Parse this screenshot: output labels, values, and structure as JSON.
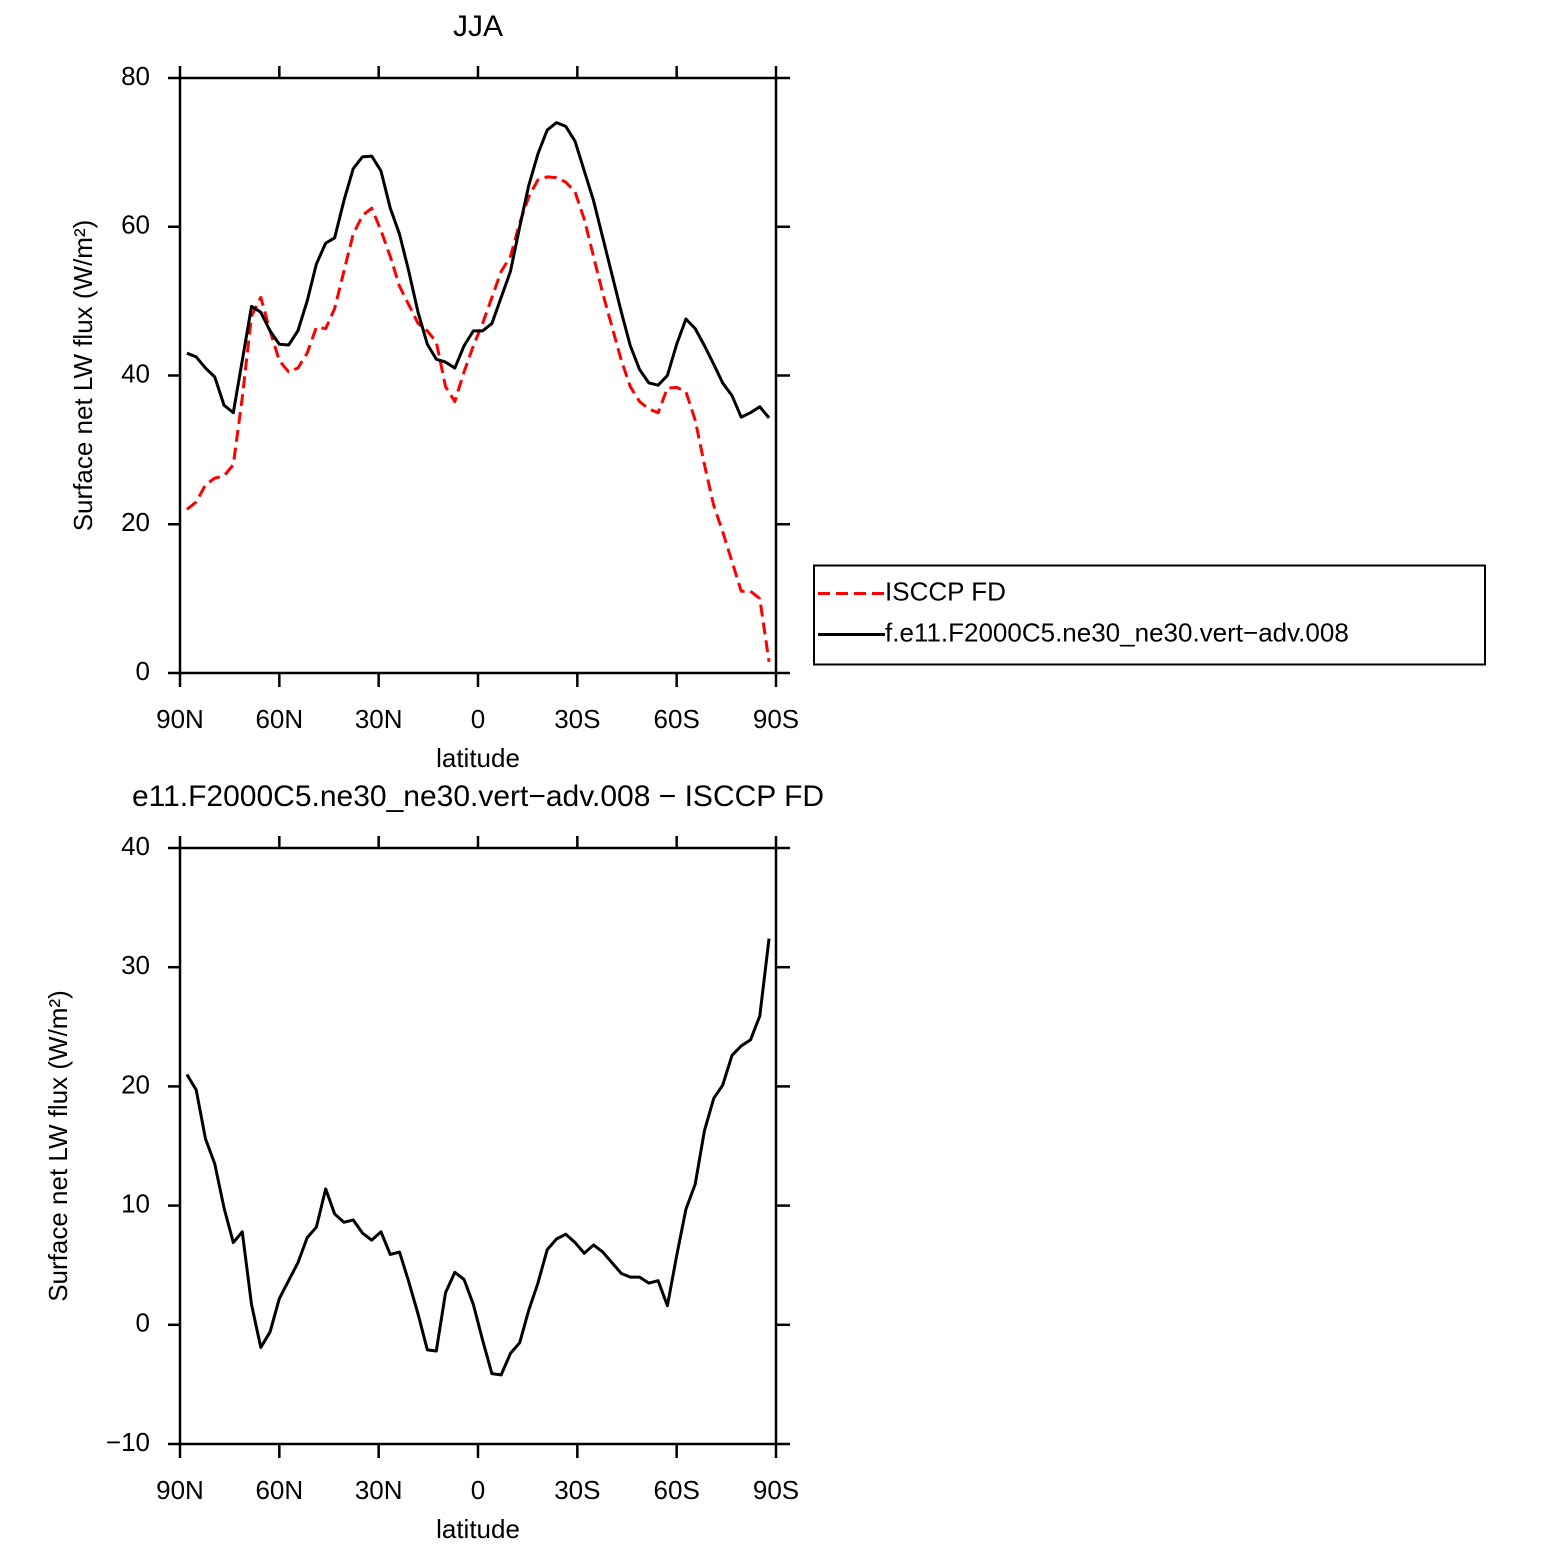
{
  "chart_data": [
    {
      "type": "line",
      "title": "JJA",
      "xlabel": "latitude",
      "ylabel": "Surface net LW flux (W/m²)",
      "x": [
        87.9,
        85.1,
        82.3,
        79.5,
        76.7,
        73.9,
        71.2,
        68.4,
        65.6,
        62.8,
        60.0,
        57.2,
        54.4,
        51.6,
        48.8,
        46.0,
        43.3,
        40.5,
        37.7,
        34.9,
        32.1,
        29.3,
        26.5,
        23.7,
        20.9,
        18.1,
        15.3,
        12.6,
        9.8,
        7.0,
        4.2,
        1.4,
        -1.4,
        -4.2,
        -7.0,
        -9.8,
        -12.6,
        -15.3,
        -18.1,
        -20.9,
        -23.7,
        -26.5,
        -29.3,
        -32.1,
        -34.9,
        -37.7,
        -40.5,
        -43.3,
        -46.0,
        -48.8,
        -51.6,
        -54.4,
        -57.2,
        -60.0,
        -62.8,
        -65.6,
        -68.4,
        -71.2,
        -73.9,
        -76.7,
        -79.5,
        -82.3,
        -85.1,
        -87.9
      ],
      "xlim": [
        90,
        -90
      ],
      "xticks": [
        {
          "value": 90,
          "label": "90N"
        },
        {
          "value": 60,
          "label": "60N"
        },
        {
          "value": 30,
          "label": "30N"
        },
        0,
        {
          "value": -30,
          "label": "30S"
        },
        {
          "value": -60,
          "label": "60S"
        },
        {
          "value": -90,
          "label": "90S"
        }
      ],
      "ylim": [
        0,
        80
      ],
      "yticks": [
        0,
        20,
        40,
        60,
        80
      ],
      "legend": "right",
      "series": [
        {
          "name": "ISCCP FD",
          "color": "#ff0000",
          "linestyle": "dashed",
          "values": [
            22,
            23,
            25.3,
            26.2,
            26.5,
            28,
            37,
            48,
            50.5,
            46,
            42,
            40.5,
            41,
            43,
            46.5,
            46.3,
            49,
            54,
            59,
            61.5,
            62.5,
            59.5,
            56,
            52,
            49.5,
            47,
            46,
            44.5,
            38.5,
            36.5,
            40.5,
            44,
            47,
            50.5,
            54,
            56,
            60.5,
            64,
            66.3,
            66.7,
            66.6,
            66,
            64.7,
            61,
            56,
            51,
            46.5,
            42,
            38.5,
            36.5,
            35.5,
            35,
            38.3,
            38.4,
            37.8,
            34,
            28,
            22.5,
            19,
            15,
            11,
            11,
            10,
            1.5
          ]
        },
        {
          "name": "f.e11.F2000C5.ne30_ne30.vert−adv.008",
          "color": "#000000",
          "linestyle": "solid",
          "values": [
            43,
            42.5,
            41,
            39.8,
            36,
            35,
            42,
            49.3,
            48.5,
            46,
            44.2,
            44.1,
            46,
            50,
            55,
            57.8,
            58.5,
            63.5,
            67.8,
            69.4,
            69.5,
            67.5,
            62.5,
            59,
            54,
            48.5,
            44.2,
            42.2,
            41.8,
            41,
            44,
            46,
            46,
            47,
            50.5,
            54,
            60,
            65.5,
            69.8,
            73,
            74,
            73.5,
            71.5,
            67.5,
            63.5,
            58.5,
            53.5,
            48.5,
            44,
            40.8,
            39,
            38.7,
            40,
            44.2,
            47.6,
            46.3,
            44,
            41.5,
            39,
            37.3,
            34.4,
            35,
            35.8,
            34.3
          ]
        }
      ]
    },
    {
      "type": "line",
      "title": "e11.F2000C5.ne30_ne30.vert−adv.008 − ISCCP FD",
      "xlabel": "latitude",
      "ylabel": "Surface net LW flux (W/m²)",
      "x": [
        87.9,
        85.1,
        82.3,
        79.5,
        76.7,
        73.9,
        71.2,
        68.4,
        65.6,
        62.8,
        60.0,
        57.2,
        54.4,
        51.6,
        48.8,
        46.0,
        43.3,
        40.5,
        37.7,
        34.9,
        32.1,
        29.3,
        26.5,
        23.7,
        20.9,
        18.1,
        15.3,
        12.6,
        9.8,
        7.0,
        4.2,
        1.4,
        -1.4,
        -4.2,
        -7.0,
        -9.8,
        -12.6,
        -15.3,
        -18.1,
        -20.9,
        -23.7,
        -26.5,
        -29.3,
        -32.1,
        -34.9,
        -37.7,
        -40.5,
        -43.3,
        -46.0,
        -48.8,
        -51.6,
        -54.4,
        -57.2,
        -60.0,
        -62.8,
        -65.6,
        -68.4,
        -71.2,
        -73.9,
        -76.7,
        -79.5,
        -82.3,
        -85.1,
        -87.9
      ],
      "xlim": [
        90,
        -90
      ],
      "xticks": [
        {
          "value": 90,
          "label": "90N"
        },
        {
          "value": 60,
          "label": "60N"
        },
        {
          "value": 30,
          "label": "30N"
        },
        0,
        {
          "value": -30,
          "label": "30S"
        },
        {
          "value": -60,
          "label": "60S"
        },
        {
          "value": -90,
          "label": "90S"
        }
      ],
      "ylim": [
        -10,
        40
      ],
      "yticks": [
        {
          "value": -10,
          "label": "−10"
        },
        0,
        10,
        20,
        30,
        40
      ],
      "series": [
        {
          "color": "#000000",
          "linestyle": "solid",
          "values": [
            21,
            19.7,
            15.6,
            13.5,
            9.8,
            6.9,
            7.8,
            1.7,
            -1.9,
            -0.6,
            2.2,
            3.7,
            5.2,
            7.3,
            8.2,
            11.4,
            9.3,
            8.6,
            8.8,
            7.7,
            7.1,
            7.8,
            5.9,
            6.1,
            3.6,
            0.9,
            -2.1,
            -2.2,
            2.7,
            4.4,
            3.8,
            1.7,
            -1.3,
            -4.1,
            -4.2,
            -2.4,
            -1.5,
            1.2,
            3.5,
            6.3,
            7.2,
            7.6,
            6.9,
            6.0,
            6.7,
            6.1,
            5.2,
            4.3,
            4.0,
            4.0,
            3.5,
            3.7,
            1.6,
            5.8,
            9.7,
            11.8,
            16.3,
            19.0,
            20.1,
            22.6,
            23.4,
            23.9,
            25.9,
            32.4
          ]
        }
      ]
    }
  ]
}
